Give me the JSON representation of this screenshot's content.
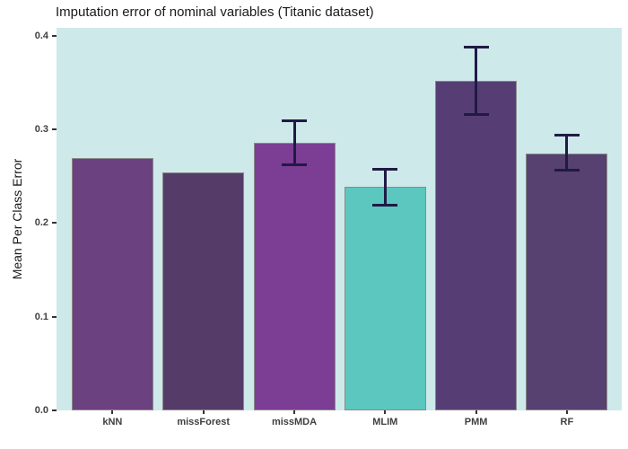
{
  "chart_data": {
    "type": "bar",
    "title": "Imputation error of nominal variables (Titanic dataset)",
    "ylabel": "Mean Per Class Error",
    "xlabel": "",
    "categories": [
      "kNN",
      "missForest",
      "missMDA",
      "MLIM",
      "PMM",
      "RF"
    ],
    "values": [
      0.27,
      0.254,
      0.286,
      0.239,
      0.352,
      0.274
    ],
    "error_bars": [
      null,
      null,
      {
        "lower": 0.261,
        "upper": 0.311
      },
      {
        "lower": 0.218,
        "upper": 0.259
      },
      {
        "lower": 0.315,
        "upper": 0.389
      },
      {
        "lower": 0.255,
        "upper": 0.295
      }
    ],
    "bar_colors": [
      "#6C4180",
      "#553C68",
      "#7B3E94",
      "#5CC7BE",
      "#563E74",
      "#564170"
    ],
    "bar_border_color": "#8A8A8A",
    "error_bar_color": "#201A45",
    "plot_background": "#CEE9EA",
    "page_background": "#FFFFFF",
    "y_ticks": [
      {
        "value": 0.0,
        "label": "0.0"
      },
      {
        "value": 0.1,
        "label": "0.1"
      },
      {
        "value": 0.2,
        "label": "0.2"
      },
      {
        "value": 0.3,
        "label": "0.3"
      },
      {
        "value": 0.4,
        "label": "0.4"
      }
    ],
    "ylim": [
      0,
      0.4086
    ],
    "grid": false,
    "legend": false
  }
}
